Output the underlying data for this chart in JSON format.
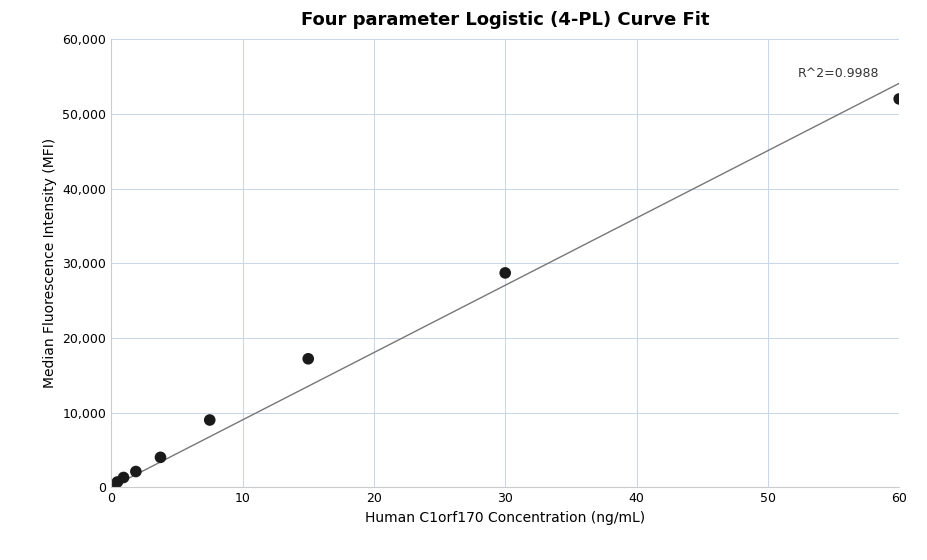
{
  "title": "Four parameter Logistic (4-PL) Curve Fit",
  "xlabel": "Human C1orf170 Concentration (ng/mL)",
  "ylabel": "Median Fluorescence Intensity (MFI)",
  "scatter_x": [
    0.234375,
    0.46875,
    0.9375,
    1.875,
    3.75,
    7.5,
    15.0,
    30.0,
    60.0
  ],
  "scatter_y": [
    300,
    700,
    1300,
    2100,
    4000,
    9000,
    17200,
    28700,
    52000
  ],
  "r_squared_text": "R^2=0.9988",
  "r_squared_x": 58.5,
  "r_squared_y": 54500,
  "xlim": [
    0,
    60
  ],
  "ylim": [
    0,
    60000
  ],
  "yticks": [
    0,
    10000,
    20000,
    30000,
    40000,
    50000,
    60000
  ],
  "xticks": [
    0,
    10,
    20,
    30,
    40,
    50,
    60
  ],
  "scatter_color": "#1a1a1a",
  "scatter_size": 70,
  "line_color": "#777777",
  "grid_color": "#c8d4e8",
  "bg_color": "#ffffff",
  "title_fontsize": 13,
  "label_fontsize": 10,
  "tick_fontsize": 9
}
